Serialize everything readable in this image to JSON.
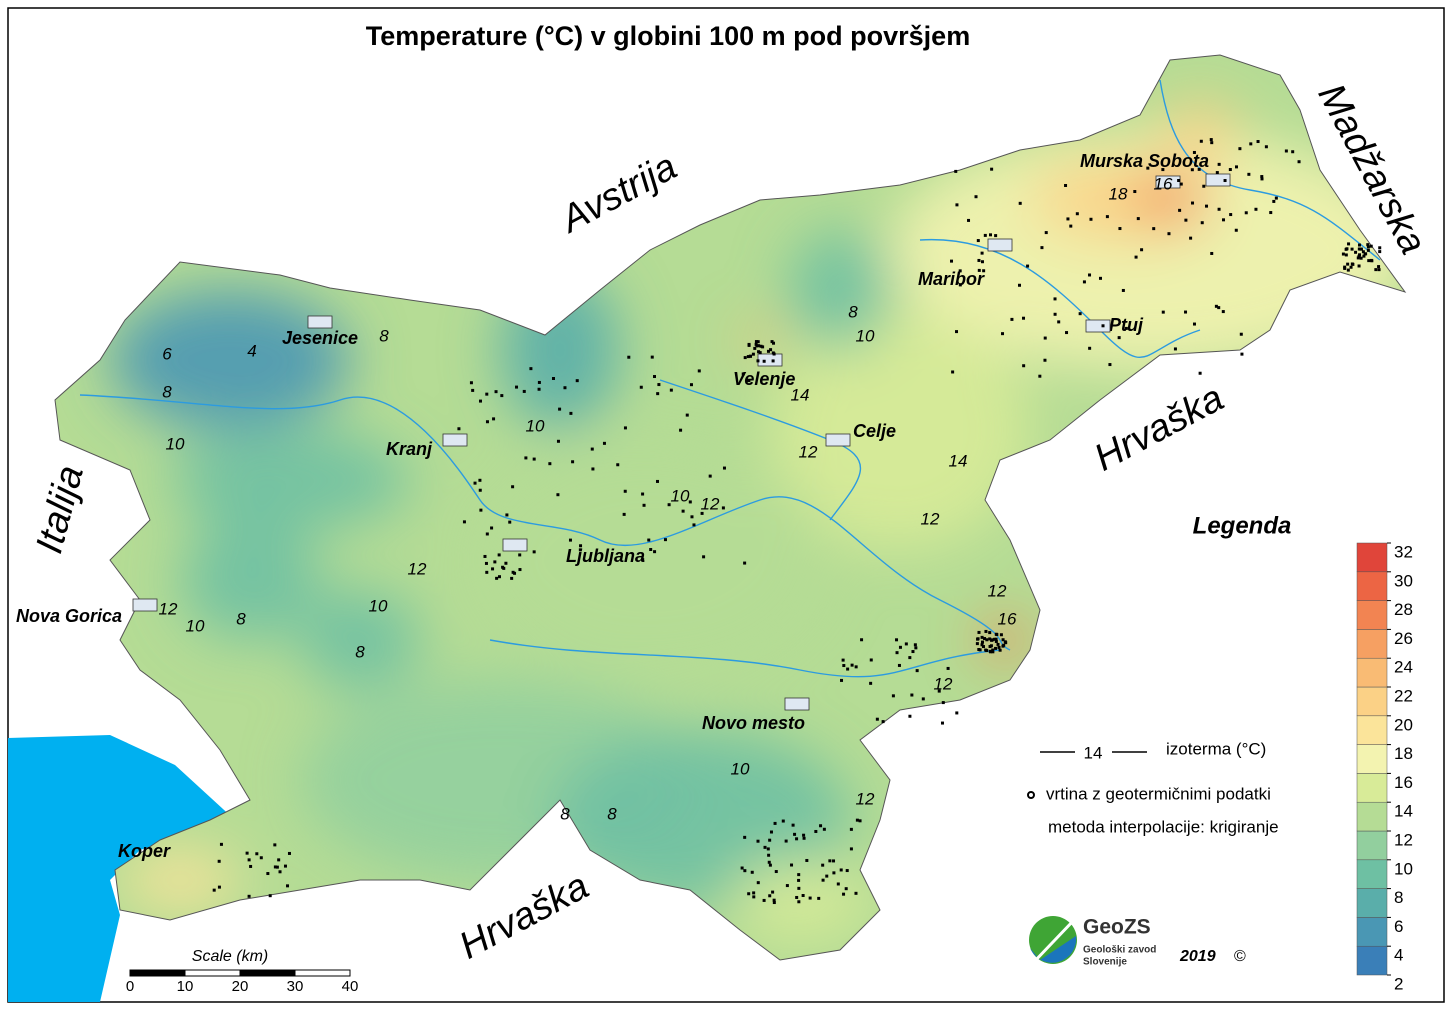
{
  "title": "Temperature (°C) v globini 100 m pod površjem",
  "countries": [
    "Avstrija",
    "Madžarska",
    "Hrvaška",
    "Hrvaška",
    "Italija"
  ],
  "cities": [
    "Jesenice",
    "Kranj",
    "Ljubljana",
    "Nova Gorica",
    "Koper",
    "Velenje",
    "Celje",
    "Maribor",
    "Murska Sobota",
    "Ptuj",
    "Novo mesto"
  ],
  "isotherm_labels": [
    4,
    6,
    8,
    8,
    10,
    10,
    12,
    14,
    10,
    12,
    8,
    10,
    14,
    12,
    12,
    16,
    12,
    12,
    10,
    12,
    10,
    8,
    8,
    10,
    8,
    8,
    12,
    18,
    16
  ],
  "legend": {
    "title": "Legenda",
    "isotherm_sample": 14,
    "isotherm": "izoterma (°C)",
    "borehole": "vrtina z geotermičnimi podatki",
    "method": "metoda interpolacije: krigiranje",
    "scale_ticks": [
      2,
      4,
      6,
      8,
      10,
      12,
      14,
      16,
      18,
      20,
      22,
      24,
      26,
      28,
      30,
      32
    ],
    "colors": [
      "#3a7fb8",
      "#4a97b4",
      "#5aaeaa",
      "#6ec0a3",
      "#92cf9e",
      "#b5dc95",
      "#d8eb98",
      "#f3f3b0",
      "#fbe49a",
      "#fbd186",
      "#f9bb74",
      "#f6a062",
      "#f28452",
      "#ec6544",
      "#e0453a"
    ]
  },
  "scale": {
    "title": "Scale (km)",
    "ticks": [
      0,
      10,
      20,
      30,
      40
    ]
  },
  "logo": {
    "name": "GeoZS",
    "line1": "Geološki zavod",
    "line2": "Slovenije"
  },
  "year": "2019",
  "copyright": "©"
}
